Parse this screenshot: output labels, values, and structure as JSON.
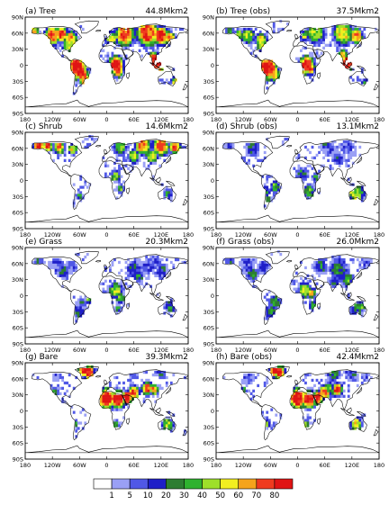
{
  "panels": [
    {
      "label": "(a) Tree",
      "area": "44.8Mkm2"
    },
    {
      "label": "(b) Tree (obs)",
      "area": "37.5Mkm2"
    },
    {
      "label": "(c) Shrub",
      "area": "14.6Mkm2"
    },
    {
      "label": "(d) Shrub (obs)",
      "area": "13.1Mkm2"
    },
    {
      "label": "(e) Grass",
      "area": "20.3Mkm2"
    },
    {
      "label": "(f) Grass (obs)",
      "area": "26.0Mkm2"
    },
    {
      "label": "(g) Bare",
      "area": "39.3Mkm2"
    },
    {
      "label": "(h) Bare (obs)",
      "area": "42.4Mkm2"
    }
  ],
  "axes": {
    "lat_ticks": [
      "90N",
      "60N",
      "30N",
      "0",
      "30S",
      "60S",
      "90S"
    ],
    "lon_ticks": [
      "180",
      "120W",
      "60W",
      "0",
      "60E",
      "120E",
      "180"
    ]
  },
  "colorbar": {
    "labels": [
      "1",
      "5",
      "10",
      "20",
      "30",
      "40",
      "50",
      "60",
      "70",
      "80"
    ],
    "colors": [
      "#ffffff",
      "#9aa0f5",
      "#5058e6",
      "#1f1fc8",
      "#2e7d32",
      "#2fb22f",
      "#9ee02a",
      "#f2ee20",
      "#f5a41c",
      "#ef3b1f",
      "#e01414"
    ]
  },
  "chart_data": [
    {
      "type": "heatmap",
      "title": "(a) Tree",
      "annotation": "44.8Mkm2",
      "x_ticks": [
        "180",
        "120W",
        "60W",
        "0",
        "60E",
        "120E",
        "180"
      ],
      "y_ticks": [
        "90N",
        "60N",
        "30N",
        "0",
        "30S",
        "60S",
        "90S"
      ]
    },
    {
      "type": "heatmap",
      "title": "(b) Tree (obs)",
      "annotation": "37.5Mkm2",
      "x_ticks": [
        "180",
        "120W",
        "60W",
        "0",
        "60E",
        "120E",
        "180"
      ],
      "y_ticks": [
        "90N",
        "60N",
        "30N",
        "0",
        "30S",
        "60S",
        "90S"
      ]
    },
    {
      "type": "heatmap",
      "title": "(c) Shrub",
      "annotation": "14.6Mkm2",
      "x_ticks": [
        "180",
        "120W",
        "60W",
        "0",
        "60E",
        "120E",
        "180"
      ],
      "y_ticks": [
        "90N",
        "60N",
        "30N",
        "0",
        "30S",
        "60S",
        "90S"
      ]
    },
    {
      "type": "heatmap",
      "title": "(d) Shrub (obs)",
      "annotation": "13.1Mkm2",
      "x_ticks": [
        "180",
        "120W",
        "60W",
        "0",
        "60E",
        "120E",
        "180"
      ],
      "y_ticks": [
        "90N",
        "60N",
        "30N",
        "0",
        "30S",
        "60S",
        "90S"
      ]
    },
    {
      "type": "heatmap",
      "title": "(e) Grass",
      "annotation": "20.3Mkm2",
      "x_ticks": [
        "180",
        "120W",
        "60W",
        "0",
        "60E",
        "120E",
        "180"
      ],
      "y_ticks": [
        "90N",
        "60N",
        "30N",
        "0",
        "30S",
        "60S",
        "90S"
      ]
    },
    {
      "type": "heatmap",
      "title": "(f) Grass (obs)",
      "annotation": "26.0Mkm2",
      "x_ticks": [
        "180",
        "120W",
        "60W",
        "0",
        "60E",
        "120E",
        "180"
      ],
      "y_ticks": [
        "90N",
        "60N",
        "30N",
        "0",
        "30S",
        "60S",
        "90S"
      ]
    },
    {
      "type": "heatmap",
      "title": "(g) Bare",
      "annotation": "39.3Mkm2",
      "x_ticks": [
        "180",
        "120W",
        "60W",
        "0",
        "60E",
        "120E",
        "180"
      ],
      "y_ticks": [
        "90N",
        "60N",
        "30N",
        "0",
        "30S",
        "60S",
        "90S"
      ]
    },
    {
      "type": "heatmap",
      "title": "(h) Bare (obs)",
      "annotation": "42.4Mkm2",
      "x_ticks": [
        "180",
        "120W",
        "60W",
        "0",
        "60E",
        "120E",
        "180"
      ],
      "y_ticks": [
        "90N",
        "60N",
        "30N",
        "0",
        "30S",
        "60S",
        "90S"
      ]
    }
  ]
}
